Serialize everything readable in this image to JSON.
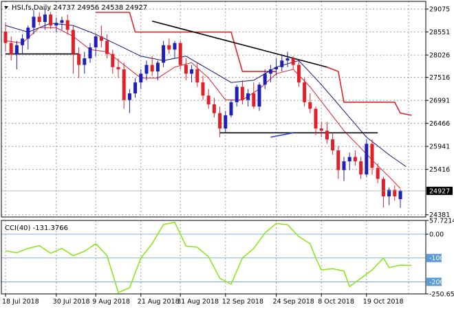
{
  "header": {
    "symbol_line": "HSI,fs,Daily  24737 24956 24538 24927",
    "cci_line": "CCI(40) -131.3766"
  },
  "colors": {
    "bull_candle": "#1f1fb5",
    "bear_candle": "#e0202a",
    "ma_fast": "#e0202a",
    "ma_slow": "#101080",
    "stop_line": "#e0202a",
    "cci_line": "#8ee61e",
    "trendline": "#000000",
    "level_line": "#5b9bd5"
  },
  "chart_data": [
    {
      "type": "candlestick",
      "title": "HSI,fs,Daily",
      "last_bar": {
        "open": 24737,
        "high": 24956,
        "low": 24538,
        "close": 24927
      },
      "current_price_label": "24927",
      "y_ticks": [
        "29075",
        "28551",
        "28026",
        "27516",
        "26991",
        "26466",
        "25941",
        "25416",
        "24381"
      ],
      "ylim": [
        24330,
        29250
      ],
      "x_ticks": [
        "18 Jul 2018",
        "30 Jul 2018",
        "9 Aug 2018",
        "21 Aug 2018",
        "31 Aug 2018",
        "12 Sep 2018",
        "24 Sep 2018",
        "8 Oct 2018",
        "19 Oct 2018"
      ],
      "x_tick_index": [
        0,
        9,
        16,
        24,
        31,
        39,
        48,
        56,
        64
      ],
      "grid": true,
      "candles": [
        [
          28560,
          28760,
          28100,
          28300
        ],
        [
          28300,
          28450,
          27900,
          28040
        ],
        [
          28040,
          28350,
          27700,
          28250
        ],
        [
          28250,
          28500,
          28050,
          28400
        ],
        [
          28400,
          28700,
          28150,
          28650
        ],
        [
          28650,
          29050,
          28500,
          28900
        ],
        [
          28900,
          29000,
          28700,
          28780
        ],
        [
          28780,
          29080,
          28600,
          28950
        ],
        [
          28950,
          29010,
          28620,
          28700
        ],
        [
          28700,
          28880,
          28550,
          28760
        ],
        [
          28760,
          28900,
          28600,
          28820
        ],
        [
          28820,
          28950,
          28500,
          28600
        ],
        [
          28600,
          28700,
          27600,
          28050
        ],
        [
          28050,
          28200,
          27500,
          27800
        ],
        [
          27800,
          28100,
          27600,
          27950
        ],
        [
          27950,
          28300,
          27850,
          28200
        ],
        [
          28200,
          28500,
          28000,
          28450
        ],
        [
          28450,
          28700,
          28200,
          28350
        ],
        [
          28350,
          28500,
          27950,
          28050
        ],
        [
          28050,
          28150,
          27600,
          27750
        ],
        [
          27750,
          27950,
          27500,
          27700
        ],
        [
          27700,
          27850,
          26800,
          27000
        ],
        [
          27000,
          27250,
          26700,
          27150
        ],
        [
          27150,
          27500,
          27050,
          27400
        ],
        [
          27400,
          27700,
          27250,
          27600
        ],
        [
          27600,
          27900,
          27450,
          27800
        ],
        [
          27800,
          28000,
          27550,
          27650
        ],
        [
          27650,
          27900,
          27450,
          27850
        ],
        [
          27850,
          28350,
          27750,
          28250
        ],
        [
          28250,
          28400,
          28050,
          28150
        ],
        [
          28150,
          28350,
          27950,
          28300
        ],
        [
          28300,
          28350,
          27700,
          27800
        ],
        [
          27800,
          27950,
          27450,
          27600
        ],
        [
          27600,
          27800,
          27400,
          27700
        ],
        [
          27700,
          27850,
          27300,
          27400
        ],
        [
          27400,
          27550,
          27000,
          27100
        ],
        [
          27100,
          27250,
          26800,
          26900
        ],
        [
          26900,
          27050,
          26600,
          26700
        ],
        [
          26700,
          26850,
          26150,
          26350
        ],
        [
          26350,
          26750,
          26250,
          26650
        ],
        [
          26650,
          27000,
          26600,
          26950
        ],
        [
          26950,
          27350,
          26850,
          27300
        ],
        [
          27300,
          27450,
          26900,
          27000
        ],
        [
          27000,
          27250,
          26850,
          27150
        ],
        [
          27150,
          27400,
          26800,
          26850
        ],
        [
          26850,
          27400,
          26750,
          27350
        ],
        [
          27350,
          27700,
          27250,
          27600
        ],
        [
          27600,
          27800,
          27400,
          27700
        ],
        [
          27700,
          27950,
          27550,
          27750
        ],
        [
          27750,
          28050,
          27650,
          27900
        ],
        [
          27900,
          28100,
          27750,
          27950
        ],
        [
          27950,
          28000,
          27700,
          27800
        ],
        [
          27800,
          27900,
          27300,
          27400
        ],
        [
          27400,
          27500,
          26850,
          26950
        ],
        [
          26950,
          27150,
          26700,
          26800
        ],
        [
          26800,
          26850,
          26200,
          26350
        ],
        [
          26350,
          26500,
          26150,
          26300
        ],
        [
          26300,
          26500,
          26000,
          26100
        ],
        [
          26100,
          26250,
          25750,
          25850
        ],
        [
          25850,
          25950,
          25200,
          25400
        ],
        [
          25400,
          25700,
          25150,
          25600
        ],
        [
          25600,
          25800,
          25400,
          25700
        ],
        [
          25700,
          25850,
          25500,
          25600
        ],
        [
          25600,
          25700,
          25200,
          25300
        ],
        [
          25300,
          26100,
          25250,
          26000
        ],
        [
          26000,
          26100,
          25300,
          25450
        ],
        [
          25450,
          25550,
          25100,
          25200
        ],
        [
          25200,
          25250,
          24550,
          24800
        ],
        [
          24800,
          25000,
          24600,
          24950
        ],
        [
          24950,
          25050,
          24700,
          24800
        ],
        [
          24737,
          24956,
          24538,
          24927
        ]
      ],
      "ma_fast": [
        [
          0,
          28350
        ],
        [
          3,
          28300
        ],
        [
          6,
          28650
        ],
        [
          9,
          28650
        ],
        [
          12,
          28450
        ],
        [
          15,
          28150
        ],
        [
          18,
          28100
        ],
        [
          21,
          27800
        ],
        [
          24,
          27500
        ],
        [
          27,
          27500
        ],
        [
          30,
          27750
        ],
        [
          33,
          27850
        ],
        [
          36,
          27500
        ],
        [
          39,
          27000
        ],
        [
          42,
          27000
        ],
        [
          45,
          27250
        ],
        [
          48,
          27600
        ],
        [
          51,
          27700
        ],
        [
          54,
          27300
        ],
        [
          57,
          26800
        ],
        [
          60,
          26300
        ],
        [
          63,
          25900
        ],
        [
          66,
          25500
        ],
        [
          68,
          25250
        ],
        [
          70,
          24980
        ]
      ],
      "ma_slow": [
        [
          0,
          28700
        ],
        [
          4,
          28550
        ],
        [
          8,
          28750
        ],
        [
          12,
          28700
        ],
        [
          16,
          28500
        ],
        [
          20,
          28250
        ],
        [
          24,
          28000
        ],
        [
          28,
          27900
        ],
        [
          32,
          28000
        ],
        [
          36,
          27700
        ],
        [
          40,
          27400
        ],
        [
          44,
          27450
        ],
        [
          48,
          27750
        ],
        [
          52,
          27900
        ],
        [
          56,
          27350
        ],
        [
          60,
          26750
        ],
        [
          64,
          26150
        ],
        [
          68,
          25750
        ],
        [
          71,
          25480
        ]
      ],
      "stop_segments": [
        [
          [
            16,
            29000
          ],
          [
            22,
            29000
          ],
          [
            23,
            28550
          ],
          [
            40,
            28550
          ],
          [
            42,
            27650
          ],
          [
            48,
            27650
          ]
        ],
        [
          [
            57,
            27750
          ],
          [
            59,
            27650
          ],
          [
            60,
            26950
          ],
          [
            69,
            26950
          ],
          [
            70,
            26700
          ],
          [
            72,
            26650
          ]
        ]
      ],
      "trendlines": [
        {
          "from": [
            26,
            28800
          ],
          "to": [
            57,
            27750
          ],
          "color": "#000000"
        },
        {
          "from": [
            0,
            28050
          ],
          "to": [
            13,
            28050
          ],
          "color": "#000000"
        },
        {
          "from": [
            38,
            26250
          ],
          "to": [
            66,
            26250
          ],
          "color": "#000000"
        },
        {
          "from": [
            47,
            26150
          ],
          "to": [
            51,
            26250
          ],
          "color": "#2a4bd7"
        }
      ]
    },
    {
      "type": "line",
      "title": "CCI(40)",
      "last_value": -131.3766,
      "y_ticks": [
        "57.7214",
        "0.00",
        "-100",
        "-200",
        "-250.650"
      ],
      "ylim": [
        -250.65,
        57.7214
      ],
      "levels": [
        0,
        -100,
        -200
      ],
      "values": [
        [
          0,
          -70
        ],
        [
          2,
          -78
        ],
        [
          4,
          -60
        ],
        [
          6,
          -48
        ],
        [
          8,
          -80
        ],
        [
          10,
          -60
        ],
        [
          12,
          -90
        ],
        [
          14,
          -72
        ],
        [
          16,
          -40
        ],
        [
          18,
          -90
        ],
        [
          20,
          -245
        ],
        [
          22,
          -225
        ],
        [
          24,
          -100
        ],
        [
          26,
          -40
        ],
        [
          28,
          40
        ],
        [
          30,
          50
        ],
        [
          32,
          -50
        ],
        [
          34,
          -55
        ],
        [
          36,
          -95
        ],
        [
          38,
          -185
        ],
        [
          40,
          -210
        ],
        [
          42,
          -100
        ],
        [
          44,
          -60
        ],
        [
          46,
          5
        ],
        [
          48,
          45
        ],
        [
          50,
          40
        ],
        [
          52,
          -10
        ],
        [
          54,
          -40
        ],
        [
          55,
          -100
        ],
        [
          56,
          -150
        ],
        [
          58,
          -145
        ],
        [
          60,
          -155
        ],
        [
          61,
          -220
        ],
        [
          63,
          -185
        ],
        [
          65,
          -150
        ],
        [
          67,
          -100
        ],
        [
          68,
          -140
        ],
        [
          70,
          -130
        ],
        [
          72,
          -131
        ]
      ]
    }
  ]
}
